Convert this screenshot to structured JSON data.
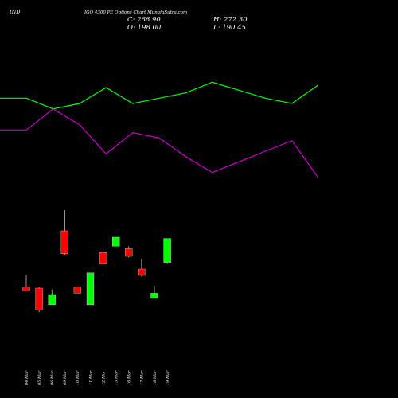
{
  "header": {
    "symbol": "IND",
    "subtitle": "IGO 4300  PE Options  Chart MunafaSutra.com",
    "close": "C: 266.90",
    "high": "H: 272.30",
    "open": "O: 198.00",
    "low": "L: 190.45"
  },
  "chart_data": [
    {
      "type": "line",
      "series": [
        {
          "color": "#00ff00",
          "values": [
            10,
            10,
            6,
            8,
            14,
            8,
            10,
            12,
            16,
            13,
            10,
            8,
            15
          ]
        },
        {
          "color": "#cc00cc",
          "values": [
            -2,
            -2,
            6,
            0,
            -11,
            -3,
            -5,
            -12,
            -18,
            -14,
            -10,
            -6,
            -20
          ]
        }
      ],
      "grid": false,
      "legend": "none"
    },
    {
      "type": "candlestick",
      "categories": [
        "04 Mar",
        "05 Mar",
        "06 Mar",
        "09 Mar",
        "10 Mar",
        "11 Mar",
        "12 Mar",
        "13 Mar",
        "16 Mar",
        "17 Mar",
        "18 Mar",
        "19 Mar"
      ],
      "up_color": "#00ff00",
      "down_color": "#ff0000",
      "candles": [
        {
          "o": 112,
          "h": 130,
          "l": 106,
          "c": 106,
          "dir": "down"
        },
        {
          "o": 110,
          "h": 112,
          "l": 72,
          "c": 76,
          "dir": "down"
        },
        {
          "o": 84,
          "h": 108,
          "l": 84,
          "c": 100,
          "dir": "up"
        },
        {
          "o": 200,
          "h": 232,
          "l": 162,
          "c": 164,
          "dir": "down"
        },
        {
          "o": 112,
          "h": 112,
          "l": 102,
          "c": 102,
          "dir": "down"
        },
        {
          "o": 84,
          "h": 134,
          "l": 84,
          "c": 134,
          "dir": "up"
        },
        {
          "o": 166,
          "h": 172,
          "l": 132,
          "c": 148,
          "dir": "down"
        },
        {
          "o": 176,
          "h": 190,
          "l": 176,
          "c": 190,
          "dir": "up"
        },
        {
          "o": 172,
          "h": 176,
          "l": 158,
          "c": 160,
          "dir": "down"
        },
        {
          "o": 140,
          "h": 156,
          "l": 128,
          "c": 130,
          "dir": "down"
        },
        {
          "o": 94,
          "h": 114,
          "l": 94,
          "c": 102,
          "dir": "up"
        },
        {
          "o": 150,
          "h": 188,
          "l": 148,
          "c": 188,
          "dir": "up"
        }
      ]
    }
  ]
}
